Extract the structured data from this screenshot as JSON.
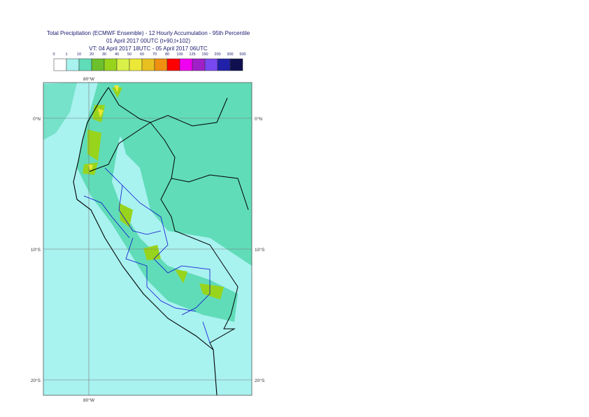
{
  "header": {
    "title": "Total Precipitation (ECMWF Ensemble) - 12 Hourly Accumulation - 95th Percentile",
    "base_time": "01 April 2017 00UTC (t+90,t+102)",
    "valid_time": "VT: 04 April 2017 18UTC - 05 April 2017 06UTC"
  },
  "legend": {
    "bounds": [
      "0",
      "1",
      "10",
      "20",
      "30",
      "40",
      "50",
      "60",
      "70",
      "80",
      "100",
      "125",
      "150",
      "200",
      "300",
      "500"
    ],
    "colors": [
      "#ffffff",
      "#a8f2f0",
      "#60dcb8",
      "#6cc02c",
      "#98d41c",
      "#d8f048",
      "#ece838",
      "#e8c020",
      "#f09010",
      "#ff0000",
      "#f000f0",
      "#a020c8",
      "#7848f0",
      "#2020a8",
      "#101050"
    ]
  },
  "map": {
    "lon_labels_top": [
      "80°W"
    ],
    "lon_labels_bottom": [
      "80°W"
    ],
    "lat_labels_left": [
      "0°N",
      "10°S",
      "20°S"
    ],
    "lat_labels_right": [
      "0°N",
      "10°S",
      "20°S"
    ]
  }
}
